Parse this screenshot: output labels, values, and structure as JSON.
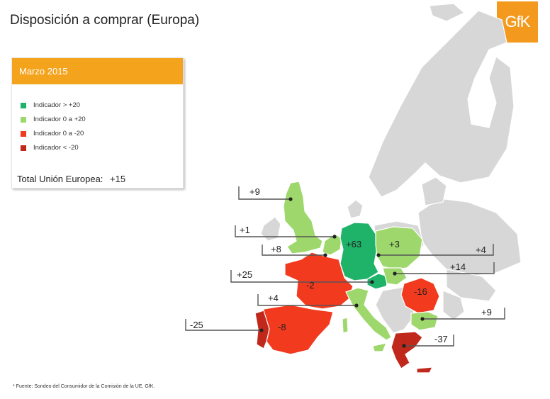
{
  "title": "Disposición a comprar (Europa)",
  "logo": "GfK",
  "legend": {
    "period": "Marzo 2015",
    "items": [
      {
        "label": "Indicador > +20",
        "color": "#1fb36a"
      },
      {
        "label": "Indicador 0 a +20",
        "color": "#9ed86c"
      },
      {
        "label": "Indicador 0 a -20",
        "color": "#f23a1e"
      },
      {
        "label": "Indicador < -20",
        "color": "#c0281c"
      }
    ],
    "total_label": "Total Unión Europea:",
    "total_value": "+15"
  },
  "colors": {
    "land_grey": "#d7d7d7",
    "border_white": "#ffffff"
  },
  "callouts": [
    {
      "value": "+9"
    },
    {
      "value": "+1"
    },
    {
      "value": "+8"
    },
    {
      "value": "+4"
    },
    {
      "value": "+25"
    },
    {
      "value": "+14"
    },
    {
      "value": "+4"
    },
    {
      "value": "-25"
    },
    {
      "value": "+9"
    },
    {
      "value": "-37"
    }
  ],
  "map_values": [
    {
      "value": "+63"
    },
    {
      "value": "+3"
    },
    {
      "value": "-2"
    },
    {
      "value": "-16"
    },
    {
      "value": "-8"
    }
  ],
  "source": "* Fuente:  Sondeo del Consumidor de la Comisión de la UE, GfK."
}
